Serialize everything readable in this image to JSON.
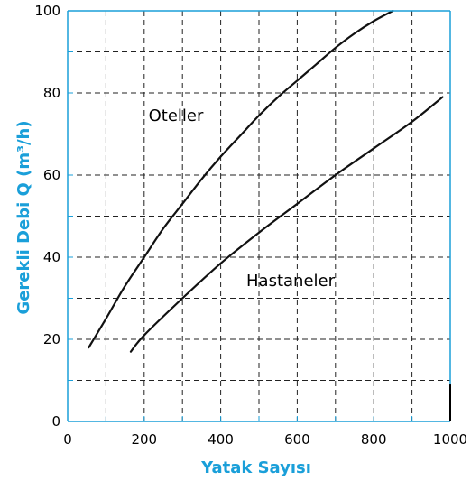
{
  "chart_data": {
    "type": "line",
    "xlabel": "Yatak Sayısı",
    "ylabel": "Gerekli Debi Q (m³/h)",
    "xlim": [
      0,
      1000
    ],
    "ylim": [
      0,
      100
    ],
    "x_ticks": [
      "0",
      "200",
      "400",
      "600",
      "800",
      "1000"
    ],
    "y_ticks": [
      "0",
      "20",
      "40",
      "60",
      "80",
      "100"
    ],
    "grid": true,
    "series": [
      {
        "name": "Oteller",
        "x": [
          55,
          100,
          150,
          200,
          250,
          300,
          350,
          400,
          450,
          500,
          550,
          600,
          650,
          700,
          750,
          800,
          850
        ],
        "y": [
          18,
          25,
          33,
          40,
          47,
          53,
          59,
          64.5,
          69.5,
          74.5,
          79,
          83,
          87,
          91,
          94.5,
          97.5,
          100
        ]
      },
      {
        "name": "Hastaneler",
        "x": [
          165,
          200,
          300,
          400,
          500,
          600,
          700,
          800,
          900,
          980
        ],
        "y": [
          17,
          21,
          30,
          38.5,
          46,
          53,
          60,
          66.5,
          73,
          79
        ]
      }
    ],
    "colors": {
      "axis": "#1a9fd9",
      "axis_title": "#1a9fd9",
      "curve": "#111111",
      "grid": "#222222"
    }
  }
}
